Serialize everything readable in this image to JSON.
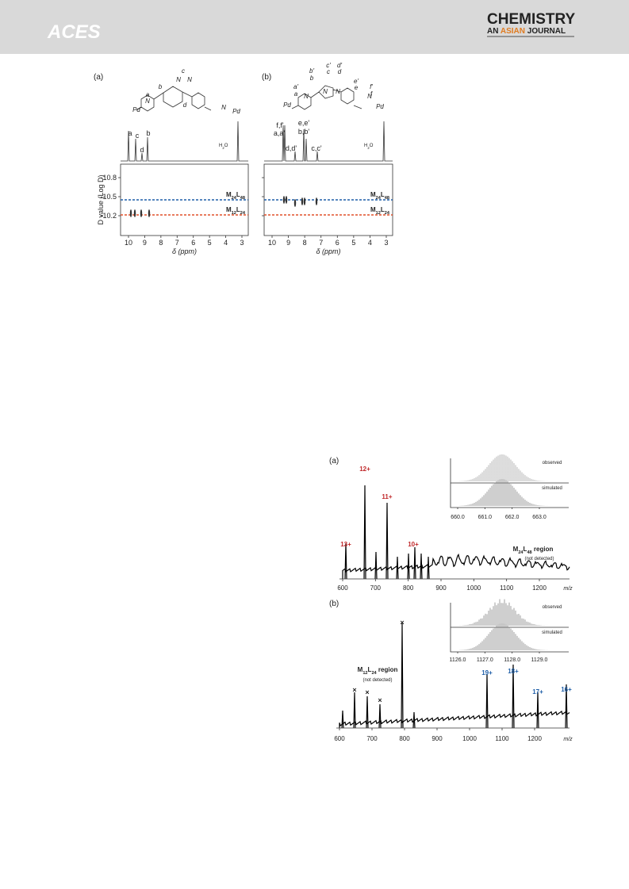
{
  "header": {
    "logo": "ACES",
    "title": "CHEMISTRY",
    "subtitle": [
      "AN ",
      "ASIAN",
      " JOURNAL"
    ]
  },
  "figure1": {
    "ylabel": "D value (Log D)",
    "panels": [
      {
        "label": "(a)",
        "structure": [
          "a",
          "b",
          "c",
          "d",
          "Pd",
          "N",
          "N",
          "N",
          "N",
          "Pd"
        ],
        "peaks": [
          "a",
          "c",
          "d",
          "b"
        ],
        "h2o": [
          "H",
          "2",
          "O"
        ],
        "xticks": [
          10,
          9,
          8,
          7,
          6,
          5,
          4,
          3
        ],
        "yticks": [
          -10.8,
          -10.5,
          -10.2
        ],
        "xlabel": "δ (ppm)",
        "lines": [
          {
            "parts": [
              "M",
              "24",
              "L",
              "48"
            ],
            "color": "#1f5fa8"
          },
          {
            "parts": [
              "M",
              "12",
              "L",
              "24"
            ],
            "color": "#e0502a"
          }
        ]
      },
      {
        "label": "(b)",
        "structure": [
          "a'",
          "a",
          "b'",
          "b",
          "c'",
          "c",
          "d'",
          "d",
          "e'",
          "e",
          "f'",
          "f",
          "Pd",
          "N",
          "N",
          "N",
          "N",
          "Pd"
        ],
        "peaks": [
          "f,f'",
          "a,a'",
          "d,d'",
          "e,e'",
          "b,b'",
          "c,c'"
        ],
        "h2o": [
          "H",
          "2",
          "O"
        ],
        "xticks": [
          10,
          9,
          8,
          7,
          6,
          5,
          4,
          3
        ],
        "yticks": [
          -10.8,
          -10.5,
          -10.2
        ],
        "xlabel": "δ (ppm)",
        "lines": [
          {
            "parts": [
              "M",
              "24",
              "L",
              "48"
            ],
            "color": "#1f5fa8"
          },
          {
            "parts": [
              "M",
              "12",
              "L",
              "24"
            ],
            "color": "#e0502a"
          }
        ]
      }
    ]
  },
  "figure2": {
    "panels": [
      {
        "label": "(a)",
        "charges": [
          {
            "text": "13+",
            "color": "#c0282a"
          },
          {
            "text": "12+",
            "color": "#c0282a"
          },
          {
            "text": "11+",
            "color": "#c0282a"
          },
          {
            "text": "10+",
            "color": "#c0282a"
          }
        ],
        "region": [
          "M",
          "24",
          "L",
          "48",
          " region"
        ],
        "note": "(not detected)",
        "xticks": [
          600,
          700,
          800,
          900,
          1000,
          1100,
          1200
        ],
        "xlabel": "m/z",
        "inset": {
          "observed": "observed",
          "simulated": "simulated",
          "xticks": [
            {
              "value": 660,
              "label": "660.0"
            },
            {
              "value": 661,
              "label": "661.0"
            },
            {
              "value": 662,
              "label": "662.0"
            },
            {
              "value": 663,
              "label": "663.0"
            }
          ]
        }
      },
      {
        "label": "(b)",
        "charges": [
          {
            "text": "19+",
            "color": "#1f5fa8"
          },
          {
            "text": "18+",
            "color": "#1f5fa8"
          },
          {
            "text": "17+",
            "color": "#1f5fa8"
          },
          {
            "text": "16+",
            "color": "#1f5fa8"
          }
        ],
        "crosses": [
          "×",
          "×",
          "×",
          "×"
        ],
        "region": [
          "M",
          "12",
          "L",
          "24",
          " region"
        ],
        "note": "(not detected)",
        "xticks": [
          600,
          700,
          800,
          900,
          1000,
          1100,
          1200
        ],
        "xlabel": "m/z",
        "inset": {
          "observed": "observed",
          "simulated": "simulated",
          "xticks": [
            {
              "value": 1126,
              "label": "1126.0"
            },
            {
              "value": 1127,
              "label": "1127.0"
            },
            {
              "value": 1128,
              "label": "1128.0"
            },
            {
              "value": 1129,
              "label": "1129.0"
            }
          ]
        }
      }
    ]
  }
}
